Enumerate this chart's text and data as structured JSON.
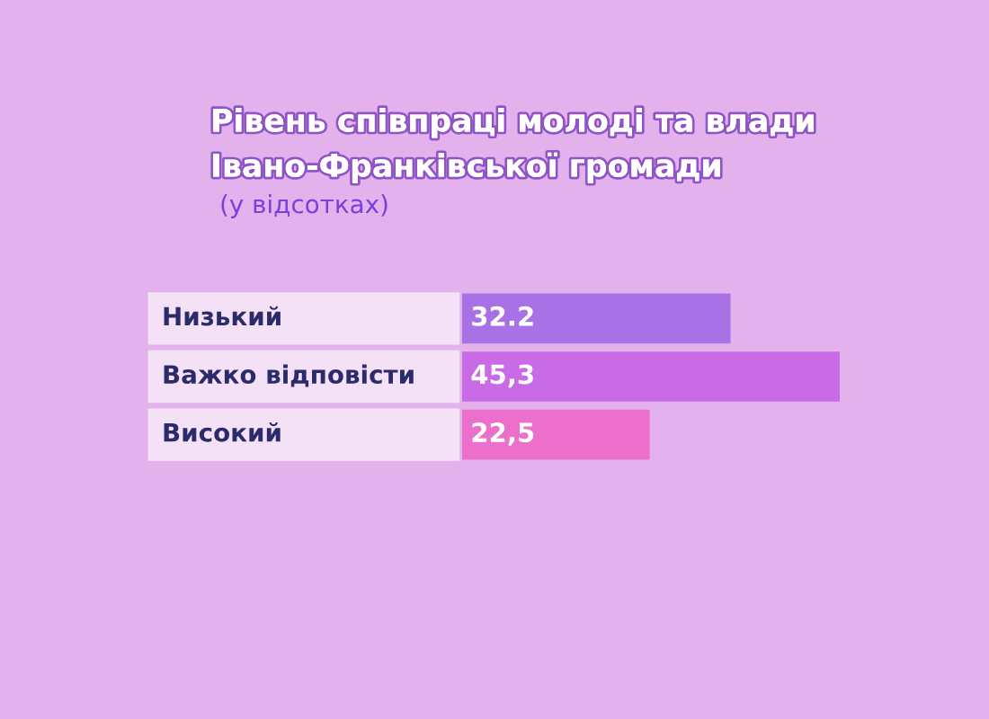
{
  "chart_data": {
    "type": "bar",
    "orientation": "horizontal",
    "title": "Рівень співпраці молоді та влади\nІвано-Франківської громади",
    "subtitle": "(у відсотках)",
    "categories": [
      "Низький",
      "Важко відповісти",
      "Високий"
    ],
    "values": [
      32.2,
      45.3,
      22.5
    ],
    "colors": [
      "#a871e6",
      "#c96be6",
      "#ec6fcb"
    ],
    "value_labels": [
      "32.2",
      "45,3",
      "22,5"
    ]
  }
}
